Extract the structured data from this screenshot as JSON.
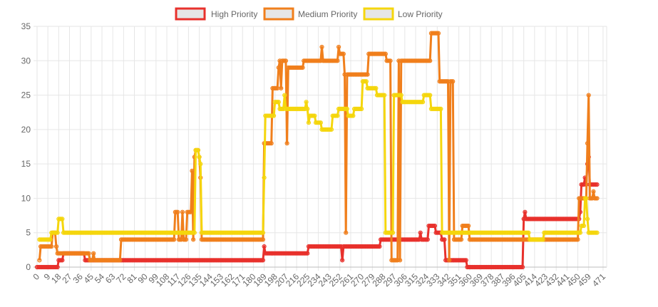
{
  "chart_data": {
    "type": "line",
    "xlim": [
      0,
      474
    ],
    "ylim": [
      0,
      35
    ],
    "y_ticks": [
      "0",
      "5",
      "10",
      "15",
      "20",
      "25",
      "30",
      "35"
    ],
    "x_ticks": [
      "0",
      "9",
      "18",
      "27",
      "36",
      "45",
      "54",
      "63",
      "72",
      "81",
      "90",
      "99",
      "108",
      "117",
      "126",
      "135",
      "144",
      "153",
      "162",
      "171",
      "180",
      "189",
      "198",
      "207",
      "216",
      "225",
      "234",
      "243",
      "252",
      "261",
      "270",
      "279",
      "288",
      "297",
      "306",
      "315",
      "324",
      "333",
      "342",
      "351",
      "360",
      "369",
      "378",
      "387",
      "396",
      "405",
      "414",
      "423",
      "432",
      "441",
      "450",
      "459",
      "471"
    ],
    "grid": true,
    "legend_position": "top",
    "series": [
      {
        "name": "High Priority",
        "color": "#e8312c",
        "points": [
          [
            0,
            0
          ],
          [
            17,
            0
          ],
          [
            18,
            1
          ],
          [
            21,
            1
          ],
          [
            22,
            2
          ],
          [
            39,
            2
          ],
          [
            40,
            1
          ],
          [
            188,
            1
          ],
          [
            189,
            3
          ],
          [
            190,
            2
          ],
          [
            225,
            2
          ],
          [
            226,
            3
          ],
          [
            253,
            3
          ],
          [
            254,
            1
          ],
          [
            255,
            3
          ],
          [
            285,
            3
          ],
          [
            286,
            4
          ],
          [
            318,
            4
          ],
          [
            319,
            5
          ],
          [
            320,
            4
          ],
          [
            325,
            4
          ],
          [
            326,
            6
          ],
          [
            331,
            6
          ],
          [
            332,
            5
          ],
          [
            336,
            5
          ],
          [
            337,
            4
          ],
          [
            339,
            4
          ],
          [
            340,
            1
          ],
          [
            357,
            1
          ],
          [
            358,
            0
          ],
          [
            404,
            0
          ],
          [
            405,
            7
          ],
          [
            406,
            8
          ],
          [
            407,
            7
          ],
          [
            451,
            7
          ],
          [
            452,
            8
          ],
          [
            453,
            12
          ],
          [
            455,
            12
          ],
          [
            456,
            13
          ],
          [
            457,
            12
          ],
          [
            458,
            15
          ],
          [
            459,
            16
          ],
          [
            460,
            12
          ],
          [
            466,
            12
          ]
        ]
      },
      {
        "name": "Medium Priority",
        "color": "#f07f1c",
        "points": [
          [
            2,
            1
          ],
          [
            3,
            3
          ],
          [
            12,
            3
          ],
          [
            13,
            5
          ],
          [
            15,
            5
          ],
          [
            16,
            3
          ],
          [
            17,
            2
          ],
          [
            43,
            2
          ],
          [
            44,
            1
          ],
          [
            47,
            2
          ],
          [
            48,
            1
          ],
          [
            69,
            1
          ],
          [
            70,
            4
          ],
          [
            114,
            4
          ],
          [
            115,
            8
          ],
          [
            117,
            8
          ],
          [
            118,
            4
          ],
          [
            121,
            8
          ],
          [
            122,
            4
          ],
          [
            125,
            8
          ],
          [
            128,
            8
          ],
          [
            129,
            14
          ],
          [
            130,
            4
          ],
          [
            131,
            16
          ],
          [
            132,
            17
          ],
          [
            134,
            17
          ],
          [
            135,
            16
          ],
          [
            136,
            13
          ],
          [
            137,
            4
          ],
          [
            188,
            4
          ],
          [
            189,
            18
          ],
          [
            195,
            18
          ],
          [
            196,
            26
          ],
          [
            200,
            26
          ],
          [
            201,
            29
          ],
          [
            202,
            30
          ],
          [
            203,
            26
          ],
          [
            204,
            30
          ],
          [
            207,
            30
          ],
          [
            208,
            18
          ],
          [
            209,
            29
          ],
          [
            221,
            29
          ],
          [
            222,
            30
          ],
          [
            236,
            30
          ],
          [
            237,
            32
          ],
          [
            238,
            30
          ],
          [
            250,
            30
          ],
          [
            251,
            32
          ],
          [
            252,
            31
          ],
          [
            255,
            31
          ],
          [
            256,
            28
          ],
          [
            257,
            5
          ],
          [
            258,
            28
          ],
          [
            275,
            28
          ],
          [
            276,
            31
          ],
          [
            290,
            31
          ],
          [
            291,
            30
          ],
          [
            294,
            30
          ],
          [
            295,
            1
          ],
          [
            300,
            1
          ],
          [
            301,
            30
          ],
          [
            302,
            1
          ],
          [
            303,
            30
          ],
          [
            327,
            30
          ],
          [
            328,
            34
          ],
          [
            334,
            34
          ],
          [
            335,
            27
          ],
          [
            342,
            27
          ],
          [
            343,
            1
          ],
          [
            344,
            27
          ],
          [
            346,
            27
          ],
          [
            347,
            4
          ],
          [
            353,
            4
          ],
          [
            354,
            6
          ],
          [
            359,
            6
          ],
          [
            360,
            4
          ],
          [
            450,
            4
          ],
          [
            451,
            10
          ],
          [
            457,
            10
          ],
          [
            458,
            18
          ],
          [
            459,
            25
          ],
          [
            460,
            10
          ],
          [
            462,
            10
          ],
          [
            463,
            11
          ],
          [
            464,
            10
          ],
          [
            466,
            10
          ]
        ]
      },
      {
        "name": "Low Priority",
        "color": "#f5d60d",
        "points": [
          [
            2,
            4
          ],
          [
            11,
            4
          ],
          [
            12,
            5
          ],
          [
            17,
            5
          ],
          [
            18,
            7
          ],
          [
            21,
            7
          ],
          [
            22,
            5
          ],
          [
            131,
            5
          ],
          [
            132,
            17
          ],
          [
            134,
            17
          ],
          [
            135,
            16
          ],
          [
            136,
            15
          ],
          [
            137,
            5
          ],
          [
            188,
            5
          ],
          [
            189,
            13
          ],
          [
            190,
            22
          ],
          [
            197,
            22
          ],
          [
            198,
            24
          ],
          [
            201,
            24
          ],
          [
            202,
            23
          ],
          [
            205,
            23
          ],
          [
            206,
            25
          ],
          [
            207,
            23
          ],
          [
            223,
            23
          ],
          [
            224,
            24
          ],
          [
            225,
            23
          ],
          [
            226,
            21
          ],
          [
            227,
            22
          ],
          [
            231,
            22
          ],
          [
            232,
            21
          ],
          [
            236,
            21
          ],
          [
            237,
            20
          ],
          [
            245,
            20
          ],
          [
            246,
            22
          ],
          [
            250,
            22
          ],
          [
            251,
            23
          ],
          [
            258,
            23
          ],
          [
            259,
            22
          ],
          [
            263,
            22
          ],
          [
            264,
            23
          ],
          [
            270,
            23
          ],
          [
            271,
            27
          ],
          [
            274,
            27
          ],
          [
            275,
            26
          ],
          [
            282,
            26
          ],
          [
            283,
            25
          ],
          [
            289,
            25
          ],
          [
            290,
            5
          ],
          [
            296,
            5
          ],
          [
            297,
            25
          ],
          [
            303,
            25
          ],
          [
            304,
            24
          ],
          [
            321,
            24
          ],
          [
            322,
            25
          ],
          [
            327,
            25
          ],
          [
            328,
            23
          ],
          [
            336,
            23
          ],
          [
            337,
            5
          ],
          [
            409,
            5
          ],
          [
            410,
            4
          ],
          [
            421,
            4
          ],
          [
            422,
            5
          ],
          [
            452,
            5
          ],
          [
            453,
            6
          ],
          [
            455,
            6
          ],
          [
            456,
            10
          ],
          [
            457,
            10
          ],
          [
            458,
            7
          ],
          [
            459,
            5
          ],
          [
            466,
            5
          ]
        ]
      }
    ]
  }
}
